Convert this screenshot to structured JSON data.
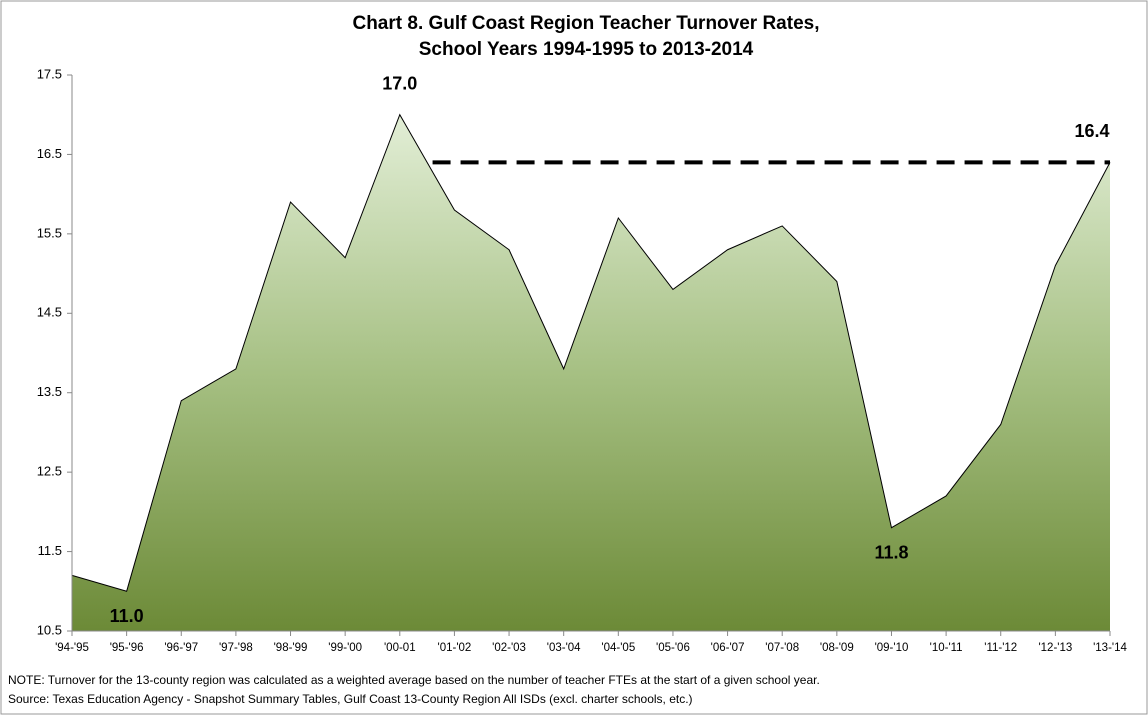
{
  "chart_data": {
    "type": "area",
    "title": "Chart 8. Gulf Coast Region Teacher Turnover Rates,",
    "subtitle": "School Years 1994-1995 to 2013-2014",
    "categories": [
      "'94-'95",
      "'95-'96",
      "'96-'97",
      "'97-'98",
      "'98-'99",
      "'99-'00",
      "'00-01",
      "'01-'02",
      "'02-'03",
      "'03-'04",
      "'04-'05",
      "'05-'06",
      "'06-'07",
      "'07-'08",
      "'08-'09",
      "'09-'10",
      "'10-'11",
      "'11-'12",
      "'12-'13",
      "'13-'14"
    ],
    "values": [
      11.2,
      11.0,
      13.4,
      13.8,
      15.9,
      15.2,
      17.0,
      15.8,
      15.3,
      13.8,
      15.7,
      14.8,
      15.3,
      15.6,
      14.9,
      11.8,
      12.2,
      13.1,
      15.1,
      16.4
    ],
    "value_labels": [
      null,
      "11.0",
      null,
      null,
      null,
      null,
      "17.0",
      null,
      null,
      null,
      null,
      null,
      null,
      null,
      null,
      "11.8",
      null,
      null,
      null,
      "16.4"
    ],
    "ylim": [
      10.5,
      17.5
    ],
    "yticks": [
      10.5,
      11.5,
      12.5,
      13.5,
      14.5,
      15.5,
      16.5,
      17.5
    ],
    "grid": false,
    "notes": [
      "NOTE: Turnover for the 13-county region was calculated as a weighted average based on the number of teacher FTEs at the start of a given school year.",
      "Source: Texas Education Agency - Snapshot Summary Tables, Gulf Coast 13-County Region All ISDs (excl. charter schools, etc.)"
    ]
  }
}
